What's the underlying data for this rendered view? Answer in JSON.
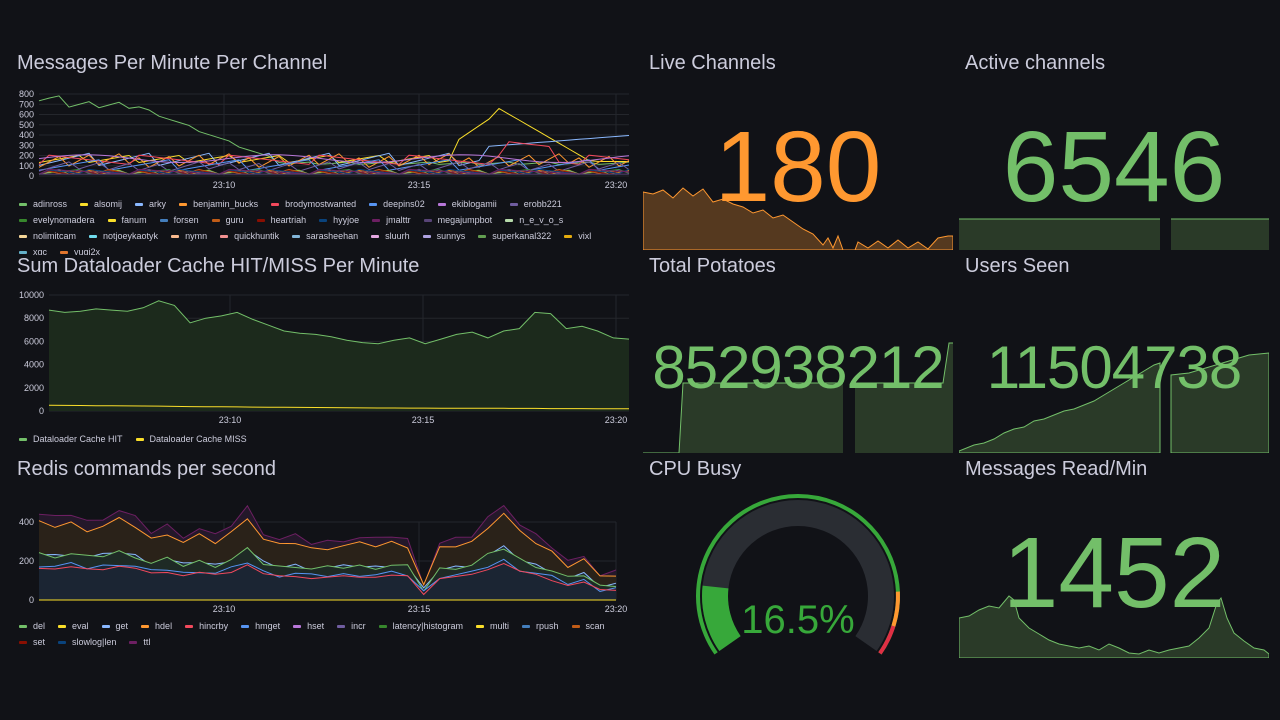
{
  "panels": {
    "messages": {
      "title": "Messages Per Minute Per Channel",
      "legend": [
        {
          "name": "adinross",
          "color": "#73bf69"
        },
        {
          "name": "alsomij",
          "color": "#fade2a"
        },
        {
          "name": "arky",
          "color": "#8ab8ff"
        },
        {
          "name": "benjamin_bucks",
          "color": "#ff9830"
        },
        {
          "name": "brodymostwanted",
          "color": "#f2495c"
        },
        {
          "name": "deepins02",
          "color": "#5794f2"
        },
        {
          "name": "ekiblogamii",
          "color": "#b877d9"
        },
        {
          "name": "erobb221",
          "color": "#705da0"
        },
        {
          "name": "evelynomadera",
          "color": "#37872d"
        },
        {
          "name": "fanum",
          "color": "#fade2a"
        },
        {
          "name": "forsen",
          "color": "#447ebc"
        },
        {
          "name": "guru",
          "color": "#c15c17"
        },
        {
          "name": "heartriah",
          "color": "#890f02"
        },
        {
          "name": "hyyjoe",
          "color": "#0a437c"
        },
        {
          "name": "jmalttr",
          "color": "#6d1f62"
        },
        {
          "name": "megajumpbot",
          "color": "#584477"
        },
        {
          "name": "n_e_v_o_s",
          "color": "#b7dbab"
        },
        {
          "name": "nolimitcam",
          "color": "#f4d598"
        },
        {
          "name": "notjoeykaotyk",
          "color": "#70dbed"
        },
        {
          "name": "nymn",
          "color": "#f9ba8f"
        },
        {
          "name": "quickhuntik",
          "color": "#f29191"
        },
        {
          "name": "sarasheehan",
          "color": "#82b5d8"
        },
        {
          "name": "sluurh",
          "color": "#e5a8e2"
        },
        {
          "name": "sunnys",
          "color": "#aea2e0"
        },
        {
          "name": "superkanal322",
          "color": "#629e51"
        },
        {
          "name": "vixl",
          "color": "#e5ac0e"
        },
        {
          "name": "xqc",
          "color": "#64b0c8"
        },
        {
          "name": "yugi2x",
          "color": "#e0752d"
        }
      ],
      "chart_data": {
        "type": "line",
        "y_ticks": [
          "800",
          "700",
          "600",
          "500",
          "400",
          "300",
          "200",
          "100",
          "0"
        ],
        "x_ticks": [
          "23:10",
          "23:15",
          "23:20"
        ],
        "ylim": [
          0,
          850
        ]
      }
    },
    "cache": {
      "title": "Sum Dataloader Cache HIT/MISS Per Minute",
      "legend": [
        {
          "name": "Dataloader Cache HIT",
          "color": "#73bf69"
        },
        {
          "name": "Dataloader Cache MISS",
          "color": "#fade2a"
        }
      ],
      "chart_data": {
        "type": "line",
        "y_ticks": [
          "10000",
          "8000",
          "6000",
          "4000",
          "2000",
          "0"
        ],
        "x_ticks": [
          "23:10",
          "23:15",
          "23:20"
        ],
        "ylim": [
          0,
          10000
        ],
        "series": [
          {
            "name": "Dataloader Cache HIT",
            "values": [
              8700,
              8500,
              8600,
              8800,
              8700,
              8600,
              8900,
              9500,
              9100,
              7600,
              8000,
              8200,
              8500,
              7900,
              7400,
              6900,
              6700,
              6600,
              6400,
              6100,
              5900,
              5800,
              6100,
              6300,
              5800,
              6200,
              6600,
              6800,
              6300,
              6900,
              7100,
              8500,
              8400,
              7100,
              7300,
              6900,
              6300,
              6200
            ]
          },
          {
            "name": "Dataloader Cache MISS",
            "values": [
              500,
              480,
              470,
              460,
              450,
              440,
              430,
              420,
              400,
              380,
              370,
              360,
              350,
              340,
              330,
              320,
              310,
              300,
              290,
              280,
              270,
              260,
              260,
              250,
              250,
              240,
              240,
              230,
              230,
              230,
              220,
              220,
              210,
              210,
              210,
              200,
              200,
              200
            ]
          }
        ]
      }
    },
    "redis": {
      "title": "Redis commands per second",
      "legend": [
        {
          "name": "del",
          "color": "#73bf69"
        },
        {
          "name": "eval",
          "color": "#fade2a"
        },
        {
          "name": "get",
          "color": "#8ab8ff"
        },
        {
          "name": "hdel",
          "color": "#ff9830"
        },
        {
          "name": "hincrby",
          "color": "#f2495c"
        },
        {
          "name": "hmget",
          "color": "#5794f2"
        },
        {
          "name": "hset",
          "color": "#b877d9"
        },
        {
          "name": "incr",
          "color": "#705da0"
        },
        {
          "name": "latency|histogram",
          "color": "#37872d"
        },
        {
          "name": "multi",
          "color": "#fade2a"
        },
        {
          "name": "rpush",
          "color": "#447ebc"
        },
        {
          "name": "scan",
          "color": "#c15c17"
        },
        {
          "name": "set",
          "color": "#890f02"
        },
        {
          "name": "slowlog|len",
          "color": "#0a437c"
        },
        {
          "name": "ttl",
          "color": "#6d1f62"
        }
      ],
      "chart_data": {
        "type": "area",
        "y_ticks": [
          "400",
          "200",
          "0"
        ],
        "x_ticks": [
          "23:10",
          "23:15",
          "23:20"
        ],
        "ylim": [
          0,
          560
        ]
      }
    },
    "live": {
      "title": "Live Channels",
      "value": "180",
      "color": "#ff9830"
    },
    "active": {
      "title": "Active channels",
      "value": "6546",
      "color": "#73bf69"
    },
    "potatoes": {
      "title": "Total Potatoes",
      "value": "852938212",
      "color": "#73bf69"
    },
    "users": {
      "title": "Users Seen",
      "value": "11504738",
      "color": "#73bf69"
    },
    "cpu": {
      "title": "CPU Busy",
      "value": "16.5%",
      "percent": 16.5,
      "color": "#37a83a"
    },
    "msgread": {
      "title": "Messages Read/Min",
      "value": "1452",
      "color": "#73bf69"
    }
  }
}
